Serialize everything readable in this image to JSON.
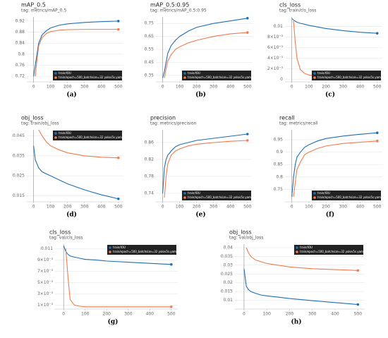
{
  "chart_data": [
    {
      "type": "line",
      "title": "mAP_0.5",
      "subtitle": "tag: metrics/mAP_0.5",
      "caption": "(a)",
      "legend": "lower right",
      "grid": true,
      "x": [
        0,
        10,
        20,
        30,
        50,
        75,
        100,
        150,
        200,
        300,
        400,
        500
      ],
      "xlim": [
        -40,
        530
      ],
      "xticks": [
        0,
        100,
        200,
        300,
        400,
        500
      ],
      "ylim": [
        0.7,
        0.935
      ],
      "yticks": [
        0.72,
        0.76,
        0.8,
        0.84,
        0.88,
        0.92
      ],
      "series": [
        {
          "name": "train/IOU",
          "color": "#1f6fb4",
          "values": [
            0.72,
            0.76,
            0.8,
            0.84,
            0.87,
            0.885,
            0.895,
            0.905,
            0.91,
            0.915,
            0.918,
            0.92
          ]
        },
        {
          "name": "train/epoch=500_batchsize=32 yolov5s.yaml",
          "color": "#f07c4f",
          "values": [
            null,
            0.72,
            0.78,
            0.83,
            0.86,
            0.875,
            0.882,
            0.887,
            0.889,
            0.89,
            0.89,
            0.89
          ]
        }
      ]
    },
    {
      "type": "line",
      "title": "mAP_0.5:0.95",
      "subtitle": "tag: metrics/mAP_0.5:0.95",
      "caption": "(b)",
      "legend": "lower right",
      "grid": true,
      "x": [
        0,
        10,
        20,
        30,
        50,
        75,
        100,
        150,
        200,
        300,
        400,
        500
      ],
      "xlim": [
        -40,
        530
      ],
      "xticks": [
        0,
        100,
        200,
        300,
        400,
        500
      ],
      "ylim": [
        0.3,
        0.8
      ],
      "yticks": [
        0.35,
        0.45,
        0.55,
        0.65,
        0.75
      ],
      "series": [
        {
          "name": "train/IOU",
          "color": "#1f6fb4",
          "values": [
            0.33,
            0.38,
            0.45,
            0.52,
            0.58,
            0.62,
            0.65,
            0.69,
            0.72,
            0.75,
            0.77,
            0.79
          ]
        },
        {
          "name": "train/epoch=500_batchsize=32 yolov5s.yaml",
          "color": "#f07c4f",
          "values": [
            null,
            0.33,
            0.4,
            0.46,
            0.51,
            0.55,
            0.57,
            0.6,
            0.62,
            0.65,
            0.67,
            0.68
          ]
        }
      ]
    },
    {
      "type": "line",
      "title": "cls_loss",
      "subtitle": "tag: train/cls_loss",
      "caption": "(c)",
      "legend": "lower right",
      "grid": true,
      "x": [
        0,
        10,
        20,
        30,
        50,
        75,
        100,
        150,
        200,
        300,
        400,
        500
      ],
      "xlim": [
        -40,
        530
      ],
      "xticks": [
        0,
        100,
        200,
        300,
        400,
        500
      ],
      "ylim": [
        -0.0005,
        0.0118
      ],
      "yticks": [
        0,
        {
          "value": 0.002,
          "label": "2×10⁻³"
        },
        {
          "value": 0.004,
          "label": "4×10⁻³"
        },
        {
          "value": 0.006,
          "label": "6×10⁻³"
        },
        {
          "value": 0.008,
          "label": "8×10⁻³"
        },
        0.01
      ],
      "series": [
        {
          "name": "train/IOU",
          "color": "#1f6fb4",
          "values": [
            0.0115,
            0.0112,
            0.011,
            0.0108,
            0.0106,
            0.0104,
            0.0102,
            0.0099,
            0.0096,
            0.0092,
            0.0089,
            0.0087
          ]
        },
        {
          "name": "train/epoch=500_batchsize=32 yolov5s.yaml",
          "color": "#f07c4f",
          "values": [
            null,
            0.011,
            0.007,
            0.004,
            0.0018,
            0.0011,
            0.0008,
            0.0006,
            0.0005,
            0.0004,
            0.0004,
            0.0004
          ]
        }
      ]
    },
    {
      "type": "line",
      "title": "obj_loss",
      "subtitle": "tag: train/obj_loss",
      "caption": "(d)",
      "legend": "upper right",
      "grid": true,
      "x": [
        0,
        10,
        20,
        30,
        50,
        75,
        100,
        150,
        200,
        300,
        400,
        500
      ],
      "xlim": [
        -40,
        530
      ],
      "xticks": [
        0,
        100,
        200,
        300,
        400,
        500
      ],
      "ylim": [
        0.012,
        0.048
      ],
      "yticks": [
        0.015,
        0.025,
        0.035,
        0.045
      ],
      "series": [
        {
          "name": "train/IOU",
          "color": "#1f6fb4",
          "values": [
            0.04,
            0.033,
            0.031,
            0.029,
            0.027,
            0.026,
            0.025,
            0.023,
            0.021,
            0.018,
            0.0155,
            0.0135
          ]
        },
        {
          "name": "train/epoch=500_batchsize=32 yolov5s.yaml",
          "color": "#f07c4f",
          "values": [
            null,
            null,
            null,
            0.048,
            0.045,
            0.042,
            0.04,
            0.038,
            0.0365,
            0.035,
            0.0343,
            0.034
          ]
        }
      ]
    },
    {
      "type": "line",
      "title": "precision",
      "subtitle": "tag: metrics/precision",
      "caption": "(e)",
      "legend": "lower right",
      "grid": true,
      "x": [
        0,
        10,
        20,
        30,
        50,
        75,
        100,
        150,
        200,
        300,
        400,
        500
      ],
      "xlim": [
        -40,
        530
      ],
      "xticks": [
        0,
        100,
        200,
        300,
        400,
        500
      ],
      "ylim": [
        0.72,
        0.89
      ],
      "yticks": [
        0.74,
        0.78,
        0.82,
        0.86
      ],
      "series": [
        {
          "name": "train/IOU",
          "color": "#1f6fb4",
          "values": [
            0.74,
            0.8,
            0.82,
            0.83,
            0.84,
            0.85,
            0.855,
            0.86,
            0.865,
            0.87,
            0.875,
            0.88
          ]
        },
        {
          "name": "train/epoch=500_batchsize=32 yolov5s.yaml",
          "color": "#f07c4f",
          "values": [
            null,
            0.73,
            0.78,
            0.81,
            0.83,
            0.84,
            0.845,
            0.852,
            0.856,
            0.86,
            0.863,
            0.865
          ]
        }
      ]
    },
    {
      "type": "line",
      "title": "recall",
      "subtitle": "tag: metrics/recall",
      "caption": "(f)",
      "legend": "lower right",
      "grid": true,
      "x": [
        0,
        10,
        20,
        30,
        50,
        75,
        100,
        150,
        200,
        300,
        400,
        500
      ],
      "xlim": [
        -40,
        530
      ],
      "xticks": [
        0,
        100,
        200,
        300,
        400,
        500
      ],
      "ylim": [
        0.7,
        0.99
      ],
      "yticks": [
        0.75,
        0.8,
        0.85,
        0.9,
        0.95
      ],
      "series": [
        {
          "name": "train/IOU",
          "color": "#1f6fb4",
          "values": [
            0.72,
            0.8,
            0.85,
            0.88,
            0.9,
            0.92,
            0.93,
            0.945,
            0.955,
            0.965,
            0.972,
            0.978
          ]
        },
        {
          "name": "train/epoch=500_batchsize=32 yolov5s.yaml",
          "color": "#f07c4f",
          "values": [
            null,
            0.72,
            0.78,
            0.83,
            0.86,
            0.89,
            0.9,
            0.915,
            0.925,
            0.935,
            0.94,
            0.945
          ]
        }
      ]
    },
    {
      "type": "line",
      "title": "cls_loss",
      "subtitle": "tag: val/cls_loss",
      "caption": "(g)",
      "legend": "upper right",
      "grid": true,
      "x": [
        0,
        10,
        20,
        30,
        50,
        75,
        100,
        150,
        200,
        300,
        400,
        500
      ],
      "xlim": [
        -40,
        530
      ],
      "xticks": [
        0,
        100,
        200,
        300,
        400,
        500
      ],
      "ylim": [
        0.0003,
        0.0118
      ],
      "yticks": [
        {
          "value": 0.001,
          "label": "1×10⁻³"
        },
        {
          "value": 0.003,
          "label": "3×10⁻³"
        },
        {
          "value": 0.005,
          "label": "5×10⁻³"
        },
        {
          "value": 0.007,
          "label": "7×10⁻³"
        },
        {
          "value": 0.009,
          "label": "9×10⁻³"
        },
        0.011
      ],
      "series": [
        {
          "name": "train/IOU",
          "color": "#1f6fb4",
          "values": [
            0.0115,
            0.0105,
            0.01,
            0.0097,
            0.0095,
            0.0093,
            0.0091,
            0.009,
            0.0088,
            0.0086,
            0.0084,
            0.0082
          ]
        },
        {
          "name": "train/epoch=500_batchsize=32 yolov5s.yaml",
          "color": "#f07c4f",
          "values": [
            null,
            0.011,
            0.006,
            0.002,
            0.001,
            0.0008,
            0.0007,
            0.0007,
            0.0007,
            0.0007,
            0.0007,
            0.0007
          ]
        }
      ]
    },
    {
      "type": "line",
      "title": "obj_loss",
      "subtitle": "tag: val/obj_loss",
      "caption": "(h)",
      "legend": "upper right",
      "grid": true,
      "x": [
        0,
        10,
        20,
        30,
        50,
        75,
        100,
        150,
        200,
        300,
        400,
        500
      ],
      "xlim": [
        -40,
        530
      ],
      "xticks": [
        0,
        100,
        200,
        300,
        400,
        500
      ],
      "ylim": [
        0.005,
        0.042
      ],
      "yticks": [
        0.01,
        0.015,
        0.02,
        0.025,
        0.03,
        0.035,
        0.04
      ],
      "series": [
        {
          "name": "train/IOU",
          "color": "#1f6fb4",
          "values": [
            0.028,
            0.018,
            0.016,
            0.015,
            0.014,
            0.013,
            0.0125,
            0.0118,
            0.011,
            0.0098,
            0.0087,
            0.0076
          ]
        },
        {
          "name": "train/epoch=500_batchsize=32 yolov5s.yaml",
          "color": "#f07c4f",
          "values": [
            null,
            0.04,
            0.037,
            0.035,
            0.033,
            0.032,
            0.031,
            0.03,
            0.029,
            0.028,
            0.0275,
            0.027
          ]
        }
      ]
    }
  ]
}
